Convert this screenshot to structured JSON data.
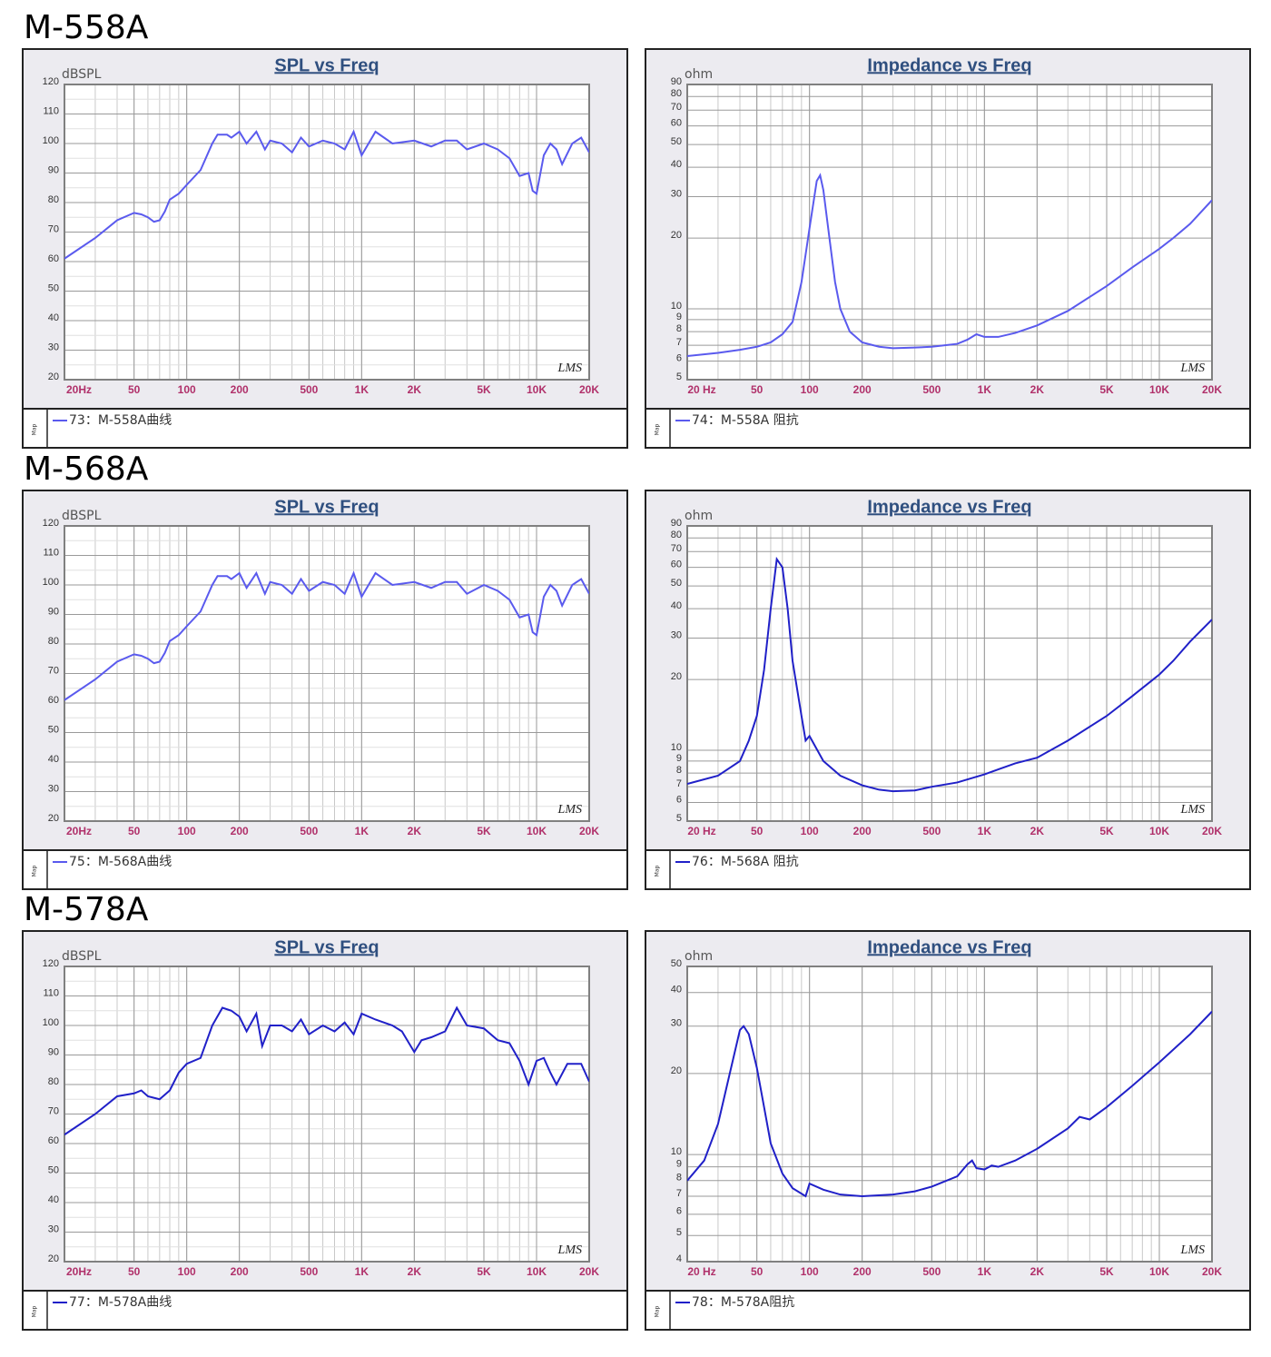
{
  "headings": [
    "M-558A",
    "M-568A",
    "M-578A"
  ],
  "chart_data": [
    {
      "type": "line",
      "title": "SPL vs Freq",
      "y_label": "dBSPL",
      "watermark": "LMS",
      "legend_tab": "Map",
      "x": [
        20,
        30,
        40,
        50,
        55,
        60,
        65,
        70,
        75,
        80,
        90,
        100,
        120,
        140,
        150,
        170,
        180,
        200,
        220,
        250,
        280,
        300,
        350,
        400,
        450,
        500,
        600,
        700,
        800,
        900,
        1000,
        1200,
        1500,
        2000,
        2500,
        3000,
        3500,
        4000,
        5000,
        6000,
        7000,
        8000,
        9000,
        9500,
        10000,
        11000,
        12000,
        13000,
        14000,
        16000,
        18000,
        20000
      ],
      "series": [
        {
          "name": "73：M-558A曲线",
          "color": "#5a5aee",
          "values": [
            61,
            68,
            74,
            76.5,
            76,
            75,
            73.5,
            74,
            77,
            81,
            83,
            86,
            91,
            100,
            103,
            103,
            102,
            104,
            100,
            104,
            98,
            101,
            100,
            97,
            102,
            99,
            101,
            100,
            98,
            104,
            96,
            104,
            100,
            101,
            99,
            101,
            101,
            98,
            100,
            98,
            95,
            89,
            90,
            84,
            83,
            96,
            100,
            98,
            93,
            100,
            102,
            97
          ]
        }
      ],
      "xlog": true,
      "xlim": [
        20,
        20000
      ],
      "xticks": [
        {
          "value": 20,
          "label": "20Hz"
        },
        50,
        100,
        200,
        500,
        {
          "value": 1000,
          "label": "1K"
        },
        {
          "value": 2000,
          "label": "2K"
        },
        {
          "value": 5000,
          "label": "5K"
        },
        {
          "value": 10000,
          "label": "10K"
        },
        {
          "value": 20000,
          "label": "20K"
        }
      ],
      "ylog": false,
      "ylim": [
        20,
        120
      ],
      "yticks": [
        20,
        30,
        40,
        50,
        60,
        70,
        80,
        90,
        100,
        110,
        120
      ],
      "grid": true,
      "minor_grid": true
    },
    {
      "type": "line",
      "title": "Impedance vs Freq",
      "y_label": "ohm",
      "watermark": "LMS",
      "legend_tab": "Map",
      "x": [
        20,
        30,
        40,
        50,
        60,
        70,
        80,
        90,
        100,
        110,
        115,
        120,
        130,
        140,
        150,
        170,
        200,
        250,
        300,
        400,
        500,
        700,
        800,
        900,
        1000,
        1200,
        1500,
        2000,
        3000,
        5000,
        7000,
        10000,
        12000,
        15000,
        20000
      ],
      "series": [
        {
          "name": "74：M-558A 阻抗",
          "color": "#5a5aee",
          "values": [
            6.3,
            6.5,
            6.7,
            6.9,
            7.2,
            7.8,
            8.8,
            13,
            22,
            35,
            37,
            32,
            20,
            13,
            10,
            8,
            7.2,
            6.9,
            6.8,
            6.85,
            6.9,
            7.1,
            7.4,
            7.8,
            7.6,
            7.6,
            7.9,
            8.5,
            9.8,
            12.5,
            15,
            18,
            20,
            23,
            29
          ]
        }
      ],
      "xlog": true,
      "xlim": [
        20,
        20000
      ],
      "xticks": [
        {
          "value": 20,
          "label": "20 Hz"
        },
        50,
        100,
        200,
        500,
        {
          "value": 1000,
          "label": "1K"
        },
        {
          "value": 2000,
          "label": "2K"
        },
        {
          "value": 5000,
          "label": "5K"
        },
        {
          "value": 10000,
          "label": "10K"
        },
        {
          "value": 20000,
          "label": "20K"
        }
      ],
      "ylog": true,
      "ylim": [
        5,
        90
      ],
      "yticks": [
        5,
        6,
        7,
        8,
        9,
        10,
        20,
        30,
        40,
        50,
        60,
        70,
        80,
        90
      ],
      "grid": true,
      "minor_grid": true
    },
    {
      "type": "line",
      "title": "SPL vs Freq",
      "y_label": "dBSPL",
      "watermark": "LMS",
      "legend_tab": "Map",
      "x": [
        20,
        30,
        40,
        50,
        55,
        60,
        65,
        70,
        75,
        80,
        90,
        100,
        120,
        140,
        150,
        170,
        180,
        200,
        220,
        250,
        280,
        300,
        350,
        400,
        450,
        500,
        600,
        700,
        800,
        900,
        1000,
        1200,
        1500,
        2000,
        2500,
        3000,
        3500,
        4000,
        5000,
        6000,
        7000,
        8000,
        9000,
        9500,
        10000,
        11000,
        12000,
        13000,
        14000,
        16000,
        18000,
        20000
      ],
      "series": [
        {
          "name": "75：M-568A曲线",
          "color": "#5a5aee",
          "values": [
            61,
            68,
            74,
            76.5,
            76,
            75,
            73.5,
            74,
            77,
            81,
            83,
            86,
            91,
            100,
            103,
            103,
            102,
            104,
            99,
            104,
            97,
            101,
            100,
            97,
            102,
            98,
            101,
            100,
            97,
            104,
            96,
            104,
            100,
            101,
            99,
            101,
            101,
            97,
            100,
            98,
            95,
            89,
            90,
            84,
            83,
            96,
            100,
            98,
            93,
            100,
            102,
            97
          ]
        }
      ],
      "xlog": true,
      "xlim": [
        20,
        20000
      ],
      "xticks": [
        {
          "value": 20,
          "label": "20Hz"
        },
        50,
        100,
        200,
        500,
        {
          "value": 1000,
          "label": "1K"
        },
        {
          "value": 2000,
          "label": "2K"
        },
        {
          "value": 5000,
          "label": "5K"
        },
        {
          "value": 10000,
          "label": "10K"
        },
        {
          "value": 20000,
          "label": "20K"
        }
      ],
      "ylog": false,
      "ylim": [
        20,
        120
      ],
      "yticks": [
        20,
        30,
        40,
        50,
        60,
        70,
        80,
        90,
        100,
        110,
        120
      ],
      "grid": true,
      "minor_grid": true
    },
    {
      "type": "line",
      "title": "Impedance vs Freq",
      "y_label": "ohm",
      "watermark": "LMS",
      "legend_tab": "Map",
      "x": [
        20,
        30,
        40,
        45,
        50,
        55,
        60,
        65,
        70,
        75,
        80,
        90,
        95,
        100,
        120,
        150,
        200,
        250,
        300,
        400,
        500,
        700,
        1000,
        1200,
        1500,
        2000,
        3000,
        5000,
        7000,
        10000,
        12000,
        15000,
        20000
      ],
      "series": [
        {
          "name": "76：M-568A 阻抗",
          "color": "#2020c8",
          "values": [
            7.2,
            7.8,
            9,
            11,
            14,
            22,
            40,
            65,
            60,
            40,
            24,
            14,
            11,
            11.5,
            9,
            7.8,
            7.1,
            6.8,
            6.7,
            6.75,
            7,
            7.3,
            7.9,
            8.3,
            8.8,
            9.3,
            11,
            14,
            17,
            21,
            24,
            29,
            36
          ]
        }
      ],
      "xlog": true,
      "xlim": [
        20,
        20000
      ],
      "xticks": [
        {
          "value": 20,
          "label": "20 Hz"
        },
        50,
        100,
        200,
        500,
        {
          "value": 1000,
          "label": "1K"
        },
        {
          "value": 2000,
          "label": "2K"
        },
        {
          "value": 5000,
          "label": "5K"
        },
        {
          "value": 10000,
          "label": "10K"
        },
        {
          "value": 20000,
          "label": "20K"
        }
      ],
      "ylog": true,
      "ylim": [
        5,
        90
      ],
      "yticks": [
        5,
        6,
        7,
        8,
        9,
        10,
        20,
        30,
        40,
        50,
        60,
        70,
        80,
        90
      ],
      "grid": true,
      "minor_grid": true
    },
    {
      "type": "line",
      "title": "SPL vs Freq",
      "y_label": "dBSPL",
      "watermark": "LMS",
      "legend_tab": "Map",
      "x": [
        20,
        30,
        40,
        50,
        55,
        60,
        70,
        80,
        90,
        100,
        120,
        140,
        160,
        180,
        200,
        220,
        250,
        270,
        300,
        350,
        400,
        450,
        500,
        600,
        700,
        800,
        900,
        1000,
        1200,
        1500,
        1700,
        2000,
        2200,
        2500,
        3000,
        3500,
        4000,
        5000,
        6000,
        7000,
        8000,
        9000,
        10000,
        11000,
        12000,
        13000,
        15000,
        18000,
        20000
      ],
      "series": [
        {
          "name": "77：M-578A曲线",
          "color": "#2020c8",
          "values": [
            63,
            70,
            76,
            77,
            78,
            76,
            75,
            78,
            84,
            87,
            89,
            100,
            106,
            105,
            103,
            98,
            104,
            93,
            100,
            100,
            98,
            102,
            97,
            100,
            98,
            101,
            97,
            104,
            102,
            100,
            98,
            91,
            95,
            96,
            98,
            106,
            100,
            99,
            95,
            94,
            88,
            80,
            88,
            89,
            84,
            80,
            87,
            87,
            81
          ]
        }
      ],
      "xlog": true,
      "xlim": [
        20,
        20000
      ],
      "xticks": [
        {
          "value": 20,
          "label": "20Hz"
        },
        50,
        100,
        200,
        500,
        {
          "value": 1000,
          "label": "1K"
        },
        {
          "value": 2000,
          "label": "2K"
        },
        {
          "value": 5000,
          "label": "5K"
        },
        {
          "value": 10000,
          "label": "10K"
        },
        {
          "value": 20000,
          "label": "20K"
        }
      ],
      "ylog": false,
      "ylim": [
        20,
        120
      ],
      "yticks": [
        20,
        30,
        40,
        50,
        60,
        70,
        80,
        90,
        100,
        110,
        120
      ],
      "grid": true,
      "minor_grid": true
    },
    {
      "type": "line",
      "title": "Impedance vs Freq",
      "y_label": "ohm",
      "watermark": "LMS",
      "legend_tab": "Map",
      "x": [
        20,
        25,
        30,
        35,
        40,
        42,
        45,
        50,
        55,
        60,
        70,
        80,
        95,
        100,
        120,
        150,
        200,
        300,
        400,
        500,
        700,
        800,
        850,
        900,
        1000,
        1100,
        1200,
        1500,
        2000,
        3000,
        3500,
        4000,
        5000,
        7000,
        10000,
        15000,
        20000
      ],
      "series": [
        {
          "name": "78：M-578A阻抗",
          "color": "#2020c8",
          "values": [
            8,
            9.5,
            13,
            20,
            29,
            30,
            28,
            21,
            15,
            11,
            8.5,
            7.5,
            7,
            7.8,
            7.4,
            7.1,
            7,
            7.1,
            7.3,
            7.6,
            8.3,
            9.2,
            9.5,
            8.9,
            8.8,
            9.1,
            9,
            9.5,
            10.5,
            12.5,
            13.8,
            13.5,
            15,
            18,
            22,
            28,
            34
          ]
        }
      ],
      "xlog": true,
      "xlim": [
        20,
        20000
      ],
      "xticks": [
        {
          "value": 20,
          "label": "20 Hz"
        },
        50,
        100,
        200,
        500,
        {
          "value": 1000,
          "label": "1K"
        },
        {
          "value": 2000,
          "label": "2K"
        },
        {
          "value": 5000,
          "label": "5K"
        },
        {
          "value": 10000,
          "label": "10K"
        },
        {
          "value": 20000,
          "label": "20K"
        }
      ],
      "ylog": true,
      "ylim": [
        4,
        50
      ],
      "yticks": [
        4,
        5,
        6,
        7,
        8,
        9,
        10,
        20,
        30,
        40,
        50
      ],
      "grid": true,
      "minor_grid": true
    }
  ]
}
